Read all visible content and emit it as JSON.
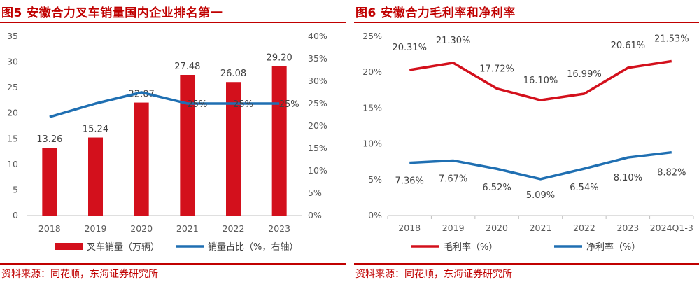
{
  "left": {
    "title": "图5  安徽合力叉车销量国内企业排名第一",
    "source": "资料来源：同花顺，东海证券研究所",
    "colors": {
      "bar": "#d3101c",
      "line": "#1f6fb2"
    },
    "chart_data": {
      "type": "bar",
      "categories": [
        "2018",
        "2019",
        "2020",
        "2021",
        "2022",
        "2023"
      ],
      "series": [
        {
          "name": "叉车销量（万辆）",
          "type": "bar",
          "axis": "left",
          "values": [
            13.26,
            15.24,
            22.07,
            27.48,
            26.08,
            29.2
          ],
          "labels": [
            "13.26",
            "15.24",
            "22.07",
            "27.48",
            "26.08",
            "29.20"
          ]
        },
        {
          "name": "销量占比（%，右轴）",
          "type": "line",
          "axis": "right",
          "values": [
            22,
            25,
            27.5,
            25,
            25,
            25
          ],
          "labels": [
            "",
            "",
            "",
            "25%",
            "25%",
            "25%"
          ]
        }
      ],
      "ylim": [
        0,
        35
      ],
      "yticks": [
        "0",
        "5",
        "10",
        "15",
        "20",
        "25",
        "30",
        "35"
      ],
      "y2lim": [
        0,
        40
      ],
      "y2ticks": [
        "0%",
        "5%",
        "10%",
        "15%",
        "20%",
        "25%",
        "30%",
        "35%",
        "40%"
      ],
      "grid": false,
      "legend": "bottom"
    }
  },
  "right": {
    "title": "图6  安徽合力毛利率和净利率",
    "source": "资料来源：同花顺，东海证券研究所",
    "colors": {
      "gross": "#d3101c",
      "net": "#1f6fb2"
    },
    "chart_data": {
      "type": "line",
      "categories": [
        "2018",
        "2019",
        "2020",
        "2021",
        "2022",
        "2023",
        "2024Q1-3"
      ],
      "series": [
        {
          "name": "毛利率（%）",
          "values": [
            20.31,
            21.3,
            17.72,
            16.1,
            16.99,
            20.61,
            21.53
          ],
          "labels": [
            "20.31%",
            "21.30%",
            "17.72%",
            "16.10%",
            "16.99%",
            "20.61%",
            "21.53%"
          ]
        },
        {
          "name": "净利率（%）",
          "values": [
            7.36,
            7.67,
            6.52,
            5.09,
            6.54,
            8.1,
            8.82
          ],
          "labels": [
            "7.36%",
            "7.67%",
            "6.52%",
            "5.09%",
            "6.54%",
            "8.10%",
            "8.82%"
          ]
        }
      ],
      "ylim": [
        0,
        25
      ],
      "yticks": [
        "0%",
        "5%",
        "10%",
        "15%",
        "20%",
        "25%"
      ],
      "grid": false,
      "legend": "bottom"
    }
  }
}
